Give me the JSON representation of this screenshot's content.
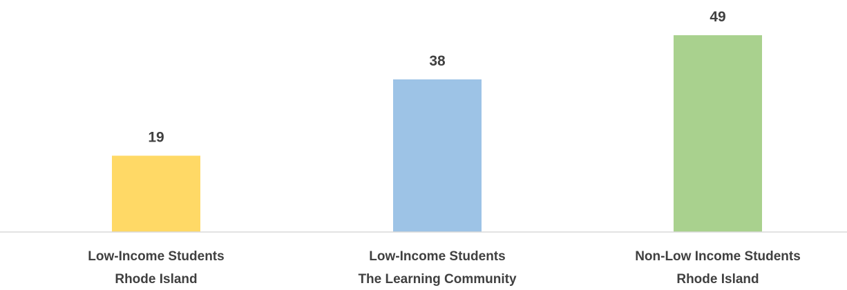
{
  "chart_data": {
    "type": "bar",
    "categories": [
      [
        "Low-Income Students",
        "Rhode Island"
      ],
      [
        "Low-Income Students",
        "The Learning Community"
      ],
      [
        "Non-Low Income Students",
        "Rhode Island"
      ]
    ],
    "values": [
      19,
      38,
      49
    ],
    "colors": [
      "#FFD966",
      "#9DC3E6",
      "#A9D18E"
    ],
    "data_labels": [
      "19",
      "38",
      "49"
    ],
    "ylim": [
      0,
      50
    ],
    "grid": false,
    "legend": "none",
    "axis_line_color": "#D9D9D9",
    "text_color": "#404040"
  }
}
